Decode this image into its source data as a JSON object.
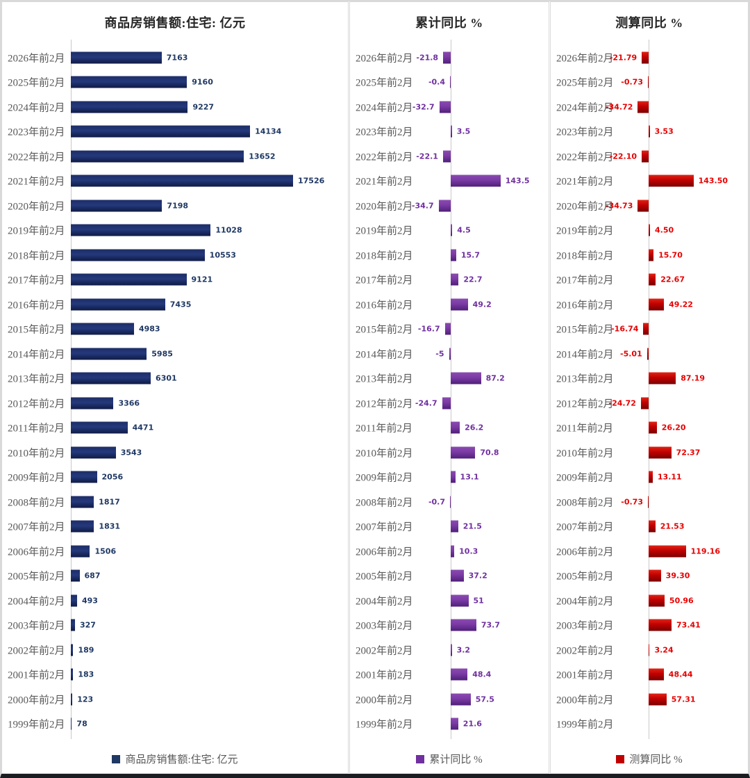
{
  "page": {
    "background": "#ffffff",
    "frame_border_color": "#d9d9d9",
    "bottom_bar_color": "#1b1b22",
    "axis_line_color": "#c9c9c9",
    "category_label_color": "#595959"
  },
  "chart_data": [
    {
      "type": "bar",
      "orientation": "horizontal",
      "title": "商品房销售额:住宅: 亿元",
      "legend": "商品房销售额:住宅: 亿元",
      "legend_position": "bottom",
      "grid": false,
      "bar_color": "#1F3864",
      "legend_color": "#1F3864",
      "value_label_color": "#1F3864",
      "category_label_color": "#595959",
      "xlim": [
        0,
        18000
      ],
      "categories": [
        "2026年前2月",
        "2025年前2月",
        "2024年前2月",
        "2023年前2月",
        "2022年前2月",
        "2021年前2月",
        "2020年前2月",
        "2019年前2月",
        "2018年前2月",
        "2017年前2月",
        "2016年前2月",
        "2015年前2月",
        "2014年前2月",
        "2013年前2月",
        "2012年前2月",
        "2011年前2月",
        "2010年前2月",
        "2009年前2月",
        "2008年前2月",
        "2007年前2月",
        "2006年前2月",
        "2005年前2月",
        "2004年前2月",
        "2003年前2月",
        "2002年前2月",
        "2001年前2月",
        "2000年前2月",
        "1999年前2月"
      ],
      "values": [
        7163,
        9160,
        9227,
        14134,
        13652,
        17526,
        7198,
        11028,
        10553,
        9121,
        7435,
        4983,
        5985,
        6301,
        3366,
        4471,
        3543,
        2056,
        1817,
        1831,
        1506,
        687,
        493,
        327,
        189,
        183,
        123,
        78
      ],
      "value_labels": [
        "7163",
        "9160",
        "9227",
        "14134",
        "13652",
        "17526",
        "7198",
        "11028",
        "10553",
        "9121",
        "7435",
        "4983",
        "5985",
        "6301",
        "3366",
        "4471",
        "3543",
        "2056",
        "1817",
        "1831",
        "1506",
        "687",
        "493",
        "327",
        "189",
        "183",
        "123",
        "78"
      ]
    },
    {
      "type": "bar",
      "orientation": "horizontal",
      "title": "累计同比 %",
      "legend": "累计同比 %",
      "legend_position": "bottom",
      "grid": false,
      "bar_color": "#7030A0",
      "legend_color": "#7030A0",
      "value_label_color": "#7030A0",
      "category_label_color": "#595959",
      "xlim": [
        -40,
        160
      ],
      "categories": [
        "2026年前2月",
        "2025年前2月",
        "2024年前2月",
        "2023年前2月",
        "2022年前2月",
        "2021年前2月",
        "2020年前2月",
        "2019年前2月",
        "2018年前2月",
        "2017年前2月",
        "2016年前2月",
        "2015年前2月",
        "2014年前2月",
        "2013年前2月",
        "2012年前2月",
        "2011年前2月",
        "2010年前2月",
        "2009年前2月",
        "2008年前2月",
        "2007年前2月",
        "2006年前2月",
        "2005年前2月",
        "2004年前2月",
        "2003年前2月",
        "2002年前2月",
        "2001年前2月",
        "2000年前2月",
        "1999年前2月"
      ],
      "values": [
        -21.8,
        -0.4,
        -32.7,
        3.5,
        -22.1,
        143.5,
        -34.7,
        4.5,
        15.7,
        22.7,
        49.2,
        -16.7,
        -5,
        87.2,
        -24.7,
        26.2,
        70.8,
        13.1,
        -0.7,
        21.5,
        10.3,
        37.2,
        51,
        73.7,
        3.2,
        48.4,
        57.5,
        21.6
      ],
      "value_labels": [
        "-21.8",
        "-0.4",
        "-32.7",
        "3.5",
        "-22.1",
        "143.5",
        "-34.7",
        "4.5",
        "15.7",
        "22.7",
        "49.2",
        "-16.7",
        "-5",
        "87.2",
        "-24.7",
        "26.2",
        "70.8",
        "13.1",
        "-0.7",
        "21.5",
        "10.3",
        "37.2",
        "51",
        "73.7",
        "3.2",
        "48.4",
        "57.5",
        "21.6"
      ]
    },
    {
      "type": "bar",
      "orientation": "horizontal",
      "title": "测算同比 %",
      "legend": "测算同比 %",
      "legend_position": "bottom",
      "grid": false,
      "bar_color": "#C00000",
      "legend_color": "#C00000",
      "value_label_color": "#e80000",
      "category_label_color": "#595959",
      "xlim": [
        -40,
        160
      ],
      "categories": [
        "2026年前2月",
        "2025年前2月",
        "2024年前2月",
        "2023年前2月",
        "2022年前2月",
        "2021年前2月",
        "2020年前2月",
        "2019年前2月",
        "2018年前2月",
        "2017年前2月",
        "2016年前2月",
        "2015年前2月",
        "2014年前2月",
        "2013年前2月",
        "2012年前2月",
        "2011年前2月",
        "2010年前2月",
        "2009年前2月",
        "2008年前2月",
        "2007年前2月",
        "2006年前2月",
        "2005年前2月",
        "2004年前2月",
        "2003年前2月",
        "2002年前2月",
        "2001年前2月",
        "2000年前2月",
        "1999年前2月"
      ],
      "values": [
        -21.79,
        -0.73,
        -34.72,
        3.53,
        -22.1,
        143.5,
        -34.73,
        4.5,
        15.7,
        22.67,
        49.22,
        -16.74,
        -5.01,
        87.19,
        -24.72,
        26.2,
        72.37,
        13.11,
        -0.73,
        21.53,
        119.16,
        39.3,
        50.96,
        73.41,
        3.24,
        48.44,
        57.31,
        null
      ],
      "value_labels": [
        "-21.79",
        "-0.73",
        "-34.72",
        "3.53",
        "-22.10",
        "143.50",
        "-34.73",
        "4.50",
        "15.70",
        "22.67",
        "49.22",
        "-16.74",
        "-5.01",
        "87.19",
        "-24.72",
        "26.20",
        "72.37",
        "13.11",
        "-0.73",
        "21.53",
        "119.16",
        "39.30",
        "50.96",
        "73.41",
        "3.24",
        "48.44",
        "57.31",
        null
      ]
    }
  ]
}
